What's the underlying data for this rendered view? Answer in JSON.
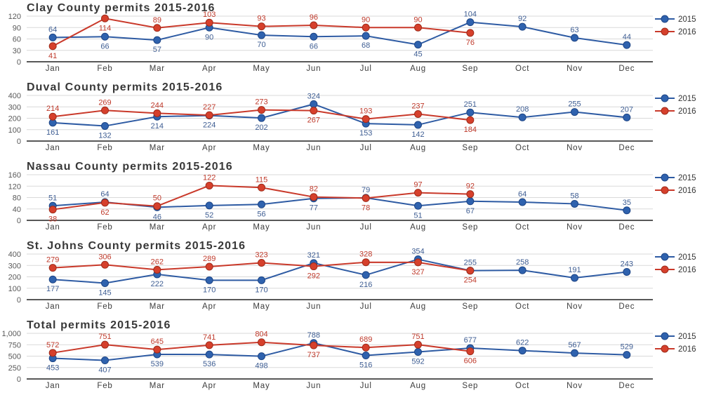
{
  "style": {
    "background": "#ffffff",
    "series_2015_line": "#2E5BA3",
    "series_2015_marker_fill": "#2F62AE",
    "series_2015_marker_stroke": "#1D4586",
    "series_2015_label": "#3F5E93",
    "series_2016_line": "#C9392A",
    "series_2016_marker_fill": "#D6402C",
    "series_2016_marker_stroke": "#9E2B1A",
    "series_2016_label": "#BF3A2B",
    "gridline": "#D9D9D9",
    "axis_line": "#404040",
    "title_color": "#383838"
  },
  "legend": {
    "items": [
      {
        "label": "2015",
        "series_key": "2015"
      },
      {
        "label": "2016",
        "series_key": "2016"
      }
    ],
    "position": "right"
  },
  "months": [
    "Jan",
    "Feb",
    "Mar",
    "Apr",
    "May",
    "Jun",
    "Jul",
    "Aug",
    "Sep",
    "Oct",
    "Nov",
    "Dec"
  ],
  "chart_data": [
    {
      "type": "line",
      "title": "Clay County permits 2015-2016",
      "categories": [
        "Jan",
        "Feb",
        "Mar",
        "Apr",
        "May",
        "Jun",
        "Jul",
        "Aug",
        "Sep",
        "Oct",
        "Nov",
        "Dec"
      ],
      "xlabel": "",
      "ylabel": "",
      "ylim": [
        0,
        120
      ],
      "y_ticks": [
        "0",
        "30",
        "60",
        "90",
        "120"
      ],
      "grid": true,
      "legend_position": "right",
      "series": [
        {
          "name": "2015",
          "values": [
            64,
            66,
            57,
            90,
            70,
            66,
            68,
            45,
            104,
            92,
            63,
            44
          ]
        },
        {
          "name": "2016",
          "values": [
            41,
            114,
            89,
            103,
            93,
            96,
            90,
            90,
            76,
            null,
            null,
            null
          ]
        }
      ]
    },
    {
      "type": "line",
      "title": "Duval County permits 2015-2016",
      "categories": [
        "Jan",
        "Feb",
        "Mar",
        "Apr",
        "May",
        "Jun",
        "Jul",
        "Aug",
        "Sep",
        "Oct",
        "Nov",
        "Dec"
      ],
      "xlabel": "",
      "ylabel": "",
      "ylim": [
        0,
        400
      ],
      "y_ticks": [
        "0",
        "100",
        "200",
        "300",
        "400"
      ],
      "grid": true,
      "legend_position": "right",
      "series": [
        {
          "name": "2015",
          "values": [
            161,
            132,
            214,
            224,
            202,
            324,
            153,
            142,
            251,
            208,
            255,
            207
          ]
        },
        {
          "name": "2016",
          "values": [
            214,
            269,
            244,
            227,
            273,
            267,
            193,
            237,
            184,
            null,
            null,
            null
          ]
        }
      ]
    },
    {
      "type": "line",
      "title": "Nassau County permits 2015-2016",
      "categories": [
        "Jan",
        "Feb",
        "Mar",
        "Apr",
        "May",
        "Jun",
        "Jul",
        "Aug",
        "Sep",
        "Oct",
        "Nov",
        "Dec"
      ],
      "xlabel": "",
      "ylabel": "",
      "ylim": [
        0,
        160
      ],
      "y_ticks": [
        "0",
        "40",
        "80",
        "120",
        "160"
      ],
      "grid": true,
      "legend_position": "right",
      "series": [
        {
          "name": "2015",
          "values": [
            51,
            64,
            46,
            52,
            56,
            77,
            79,
            51,
            67,
            64,
            58,
            35
          ]
        },
        {
          "name": "2016",
          "values": [
            38,
            62,
            50,
            122,
            115,
            82,
            78,
            97,
            92,
            null,
            null,
            null
          ]
        }
      ]
    },
    {
      "type": "line",
      "title": "St. Johns County permits 2015-2016",
      "categories": [
        "Jan",
        "Feb",
        "Mar",
        "Apr",
        "May",
        "Jun",
        "Jul",
        "Aug",
        "Sep",
        "Oct",
        "Nov",
        "Dec"
      ],
      "xlabel": "",
      "ylabel": "",
      "ylim": [
        0,
        400
      ],
      "y_ticks": [
        "0",
        "100",
        "200",
        "300",
        "400"
      ],
      "grid": true,
      "legend_position": "right",
      "series": [
        {
          "name": "2015",
          "values": [
            177,
            145,
            222,
            170,
            170,
            321,
            216,
            354,
            255,
            258,
            191,
            243
          ]
        },
        {
          "name": "2016",
          "values": [
            279,
            306,
            262,
            289,
            323,
            292,
            328,
            327,
            254,
            null,
            null,
            null
          ]
        }
      ]
    },
    {
      "type": "line",
      "title": "Total permits 2015-2016",
      "categories": [
        "Jan",
        "Feb",
        "Mar",
        "Apr",
        "May",
        "Jun",
        "Jul",
        "Aug",
        "Sep",
        "Oct",
        "Nov",
        "Dec"
      ],
      "xlabel": "",
      "ylabel": "",
      "ylim": [
        0,
        1000
      ],
      "y_ticks": [
        "0",
        "250",
        "500",
        "750",
        "1,000"
      ],
      "grid": true,
      "legend_position": "right",
      "series": [
        {
          "name": "2015",
          "values": [
            453,
            407,
            539,
            536,
            498,
            788,
            516,
            592,
            677,
            622,
            567,
            529
          ]
        },
        {
          "name": "2016",
          "values": [
            572,
            751,
            645,
            741,
            804,
            737,
            689,
            751,
            606,
            null,
            null,
            null
          ]
        }
      ]
    }
  ]
}
